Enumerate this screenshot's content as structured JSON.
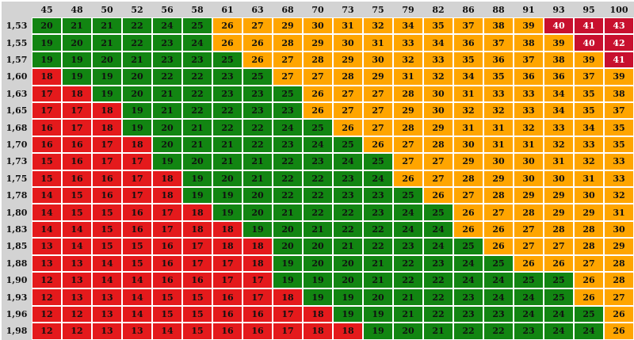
{
  "chart_data": {
    "type": "heatmap",
    "x": [
      "45",
      "48",
      "50",
      "52",
      "56",
      "58",
      "61",
      "63",
      "68",
      "70",
      "73",
      "75",
      "79",
      "82",
      "86",
      "88",
      "91",
      "93",
      "95",
      "100"
    ],
    "y": [
      "1,53",
      "1,55",
      "1,57",
      "1,60",
      "1,63",
      "1,65",
      "1,68",
      "1,70",
      "1,73",
      "1,75",
      "1,78",
      "1,80",
      "1,83",
      "1,85",
      "1,88",
      "1,90",
      "1,93",
      "1,96",
      "1,98"
    ],
    "values": [
      [
        20,
        21,
        21,
        22,
        24,
        25,
        26,
        27,
        29,
        30,
        31,
        32,
        34,
        35,
        37,
        38,
        39,
        40,
        41,
        43
      ],
      [
        19,
        20,
        21,
        22,
        23,
        24,
        26,
        26,
        28,
        29,
        30,
        31,
        33,
        34,
        36,
        37,
        38,
        39,
        40,
        42
      ],
      [
        19,
        19,
        20,
        21,
        23,
        23,
        25,
        26,
        27,
        28,
        29,
        30,
        32,
        33,
        35,
        36,
        37,
        38,
        39,
        41
      ],
      [
        18,
        19,
        19,
        20,
        22,
        22,
        23,
        25,
        27,
        27,
        28,
        29,
        31,
        32,
        34,
        35,
        36,
        36,
        37,
        39
      ],
      [
        17,
        18,
        19,
        20,
        21,
        22,
        23,
        23,
        25,
        26,
        27,
        27,
        28,
        30,
        31,
        33,
        33,
        34,
        35,
        38
      ],
      [
        17,
        17,
        18,
        19,
        21,
        22,
        22,
        23,
        23,
        26,
        27,
        27,
        29,
        30,
        32,
        32,
        33,
        34,
        35,
        37
      ],
      [
        16,
        17,
        18,
        19,
        20,
        21,
        22,
        22,
        24,
        25,
        26,
        27,
        28,
        29,
        31,
        31,
        32,
        33,
        34,
        35
      ],
      [
        16,
        16,
        17,
        18,
        20,
        21,
        21,
        22,
        23,
        24,
        25,
        26,
        27,
        28,
        30,
        31,
        31,
        32,
        33,
        35
      ],
      [
        15,
        16,
        17,
        17,
        19,
        20,
        21,
        21,
        22,
        23,
        24,
        25,
        27,
        27,
        29,
        30,
        30,
        31,
        32,
        33
      ],
      [
        15,
        16,
        16,
        17,
        18,
        19,
        20,
        21,
        22,
        22,
        23,
        24,
        26,
        27,
        28,
        29,
        30,
        30,
        31,
        33
      ],
      [
        14,
        15,
        16,
        17,
        18,
        19,
        19,
        20,
        22,
        22,
        23,
        23,
        25,
        26,
        27,
        28,
        29,
        29,
        30,
        32
      ],
      [
        14,
        15,
        15,
        16,
        17,
        18,
        19,
        20,
        21,
        22,
        22,
        23,
        24,
        25,
        26,
        27,
        28,
        29,
        29,
        31
      ],
      [
        14,
        14,
        15,
        16,
        17,
        18,
        18,
        19,
        20,
        21,
        22,
        22,
        24,
        24,
        26,
        26,
        27,
        28,
        28,
        30
      ],
      [
        13,
        14,
        15,
        15,
        16,
        17,
        18,
        18,
        20,
        20,
        21,
        22,
        23,
        24,
        25,
        26,
        27,
        27,
        28,
        29
      ],
      [
        13,
        13,
        14,
        15,
        16,
        17,
        17,
        18,
        19,
        20,
        20,
        21,
        22,
        23,
        24,
        25,
        26,
        26,
        27,
        28
      ],
      [
        12,
        13,
        14,
        14,
        16,
        16,
        17,
        17,
        19,
        19,
        20,
        21,
        22,
        22,
        24,
        24,
        25,
        25,
        26,
        28
      ],
      [
        12,
        13,
        13,
        14,
        15,
        15,
        16,
        17,
        18,
        19,
        19,
        20,
        21,
        22,
        23,
        24,
        24,
        25,
        26,
        27
      ],
      [
        12,
        12,
        13,
        14,
        15,
        15,
        16,
        16,
        17,
        18,
        19,
        19,
        21,
        22,
        23,
        23,
        24,
        24,
        25,
        26
      ],
      [
        12,
        12,
        13,
        13,
        14,
        15,
        16,
        16,
        17,
        18,
        18,
        19,
        20,
        21,
        22,
        22,
        23,
        24,
        24,
        26
      ]
    ],
    "colors": {
      "red": "#e41a1c",
      "green": "#128512",
      "orange": "#ffa500",
      "darkred": "#c8102e",
      "header_bg": "#d3d3d3"
    },
    "color_thresholds": {
      "red_below": 19,
      "green_below": 26,
      "orange_below": 40
    }
  }
}
